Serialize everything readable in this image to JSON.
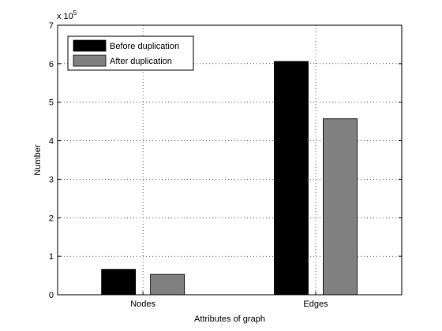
{
  "chart_data": {
    "type": "bar",
    "categories": [
      "Nodes",
      "Edges"
    ],
    "series": [
      {
        "name": "Before duplication",
        "values": [
          66000,
          606000
        ]
      },
      {
        "name": "After duplication",
        "values": [
          53000,
          457000
        ]
      }
    ],
    "xlabel": "Attributes of graph",
    "ylabel": "Number",
    "ylim": [
      0,
      700000
    ],
    "yticks": [
      0,
      1,
      2,
      3,
      4,
      5,
      6,
      7
    ],
    "y_multiplier_text": "x 10",
    "y_multiplier_exponent": "5",
    "grid": true,
    "legend_position": "top-left"
  },
  "colors": {
    "Before duplication": "#000000",
    "After duplication": "#808080",
    "grid": "#000000"
  }
}
